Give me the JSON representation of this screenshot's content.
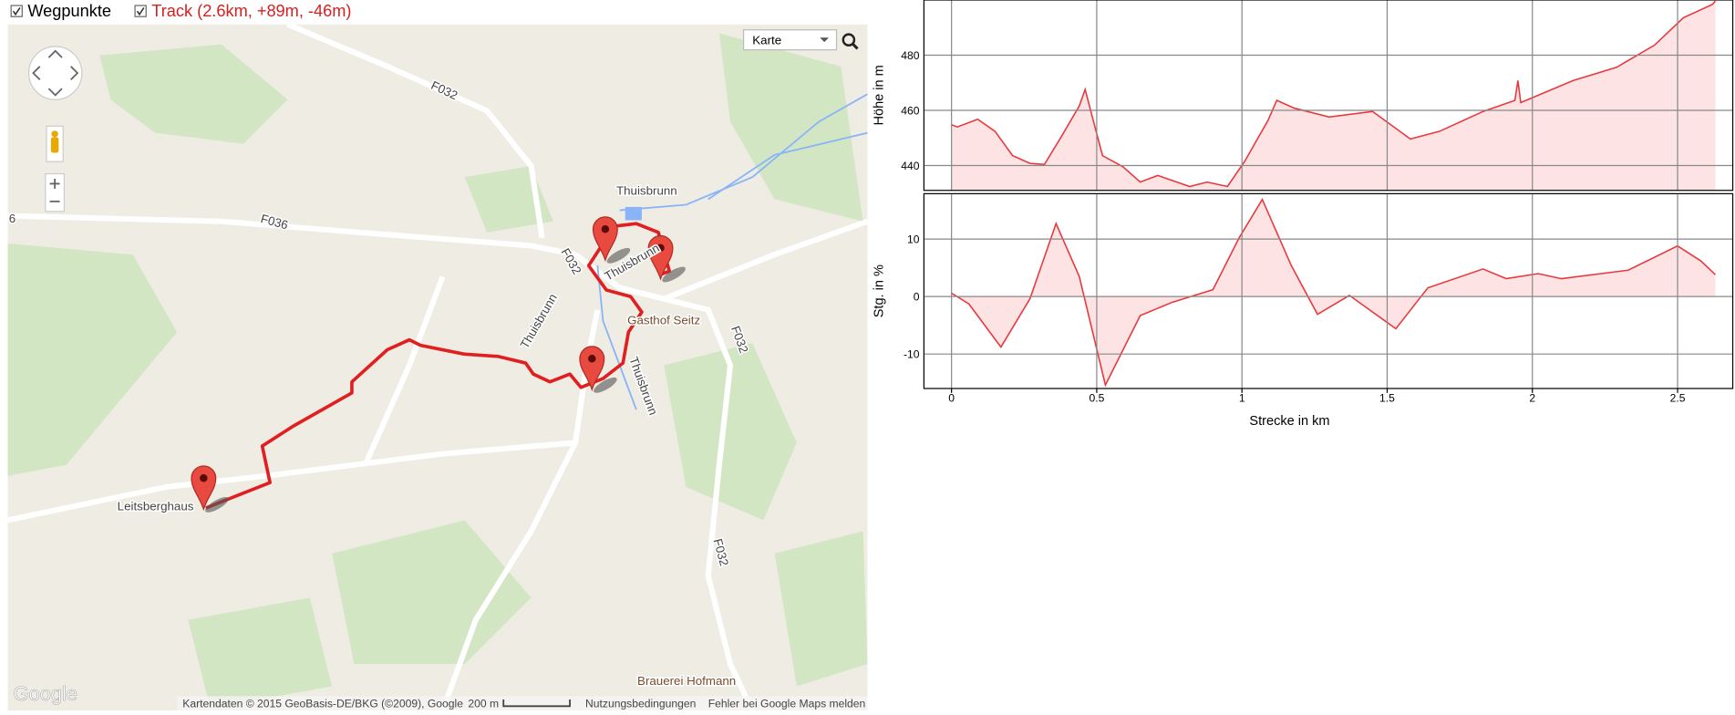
{
  "header": {
    "waypoints_label": "Wegpunkte",
    "track_label": "Track (2.6km, +89m, -46m)"
  },
  "map": {
    "labels": [
      "F032",
      "F036",
      "Thuisbrunn",
      "F032",
      "Thuisbrunn",
      "Thuisbrunn",
      "Gasthof Seitz",
      "F032",
      "Thuisbrunn",
      "F032",
      "Leitsberghaus",
      "Brauerei Hofmann",
      "6"
    ],
    "map_type": "Karte",
    "logo": "Google",
    "attribution": "Kartendaten © 2015 GeoBasis-DE/BKG (©2009), Google",
    "scale": "200 m",
    "terms": "Nutzungsbedingungen",
    "report": "Fehler bei Google Maps melden"
  },
  "chart_data": [
    {
      "type": "area",
      "ylabel": "Höhe in m",
      "color": "#e8383d",
      "fill_color": "#fde3e3",
      "grid": true,
      "xtick_labels": false,
      "x": [
        0,
        0.02,
        0.09,
        0.15,
        0.21,
        0.27,
        0.32,
        0.38,
        0.44,
        0.46,
        0.48,
        0.52,
        0.59,
        0.65,
        0.71,
        0.82,
        0.88,
        0.95,
        1.01,
        1.09,
        1.12,
        1.18,
        1.3,
        1.45,
        1.58,
        1.68,
        1.83,
        1.94,
        1.95,
        1.96,
        2.14,
        2.29,
        2.42,
        2.52,
        2.62,
        2.63
      ],
      "values": [
        454.8,
        454,
        456.8,
        452.4,
        443.6,
        440.8,
        440.4,
        450.8,
        461.6,
        467.6,
        459.6,
        443.6,
        439.6,
        434,
        436.4,
        432.4,
        434,
        432.4,
        441.6,
        456.4,
        463.6,
        460.8,
        457.6,
        459.6,
        449.6,
        452.4,
        459.6,
        463.6,
        470.8,
        462.8,
        470.8,
        475.6,
        483.6,
        493.6,
        498.4,
        499.6
      ],
      "xlim": [
        -0.095,
        2.69
      ],
      "xticks": [
        0,
        0.5,
        1,
        1.5,
        2,
        2.5
      ],
      "ylim": [
        431,
        500
      ],
      "yticks": [
        440,
        460,
        480
      ]
    },
    {
      "type": "area",
      "ylabel": "Stg. in %",
      "xlabel": "Strecke in km",
      "color": "#e8383d",
      "fill_color": "#fde3e3",
      "grid": true,
      "xtick_labels": true,
      "x": [
        0,
        0.06,
        0.17,
        0.27,
        0.36,
        0.44,
        0.53,
        0.65,
        0.76,
        0.9,
        0.99,
        1.07,
        1.17,
        1.26,
        1.37,
        1.53,
        1.64,
        1.83,
        1.91,
        2.02,
        2.1,
        2.33,
        2.5,
        2.58,
        2.63
      ],
      "values": [
        0.6,
        -1.3,
        -8.8,
        -0.4,
        12.7,
        3.5,
        -15.4,
        -3.3,
        -1,
        1.2,
        10.2,
        16.9,
        5.4,
        -3.1,
        0.2,
        -5.6,
        1.5,
        4.8,
        3.1,
        4,
        3.1,
        4.6,
        8.8,
        6.2,
        3.8
      ],
      "xlim": [
        -0.095,
        2.69
      ],
      "xticks": [
        0,
        0.5,
        1,
        1.5,
        2,
        2.5
      ],
      "ylim": [
        -16,
        17.9
      ],
      "yticks": [
        -10,
        0,
        10
      ]
    }
  ]
}
